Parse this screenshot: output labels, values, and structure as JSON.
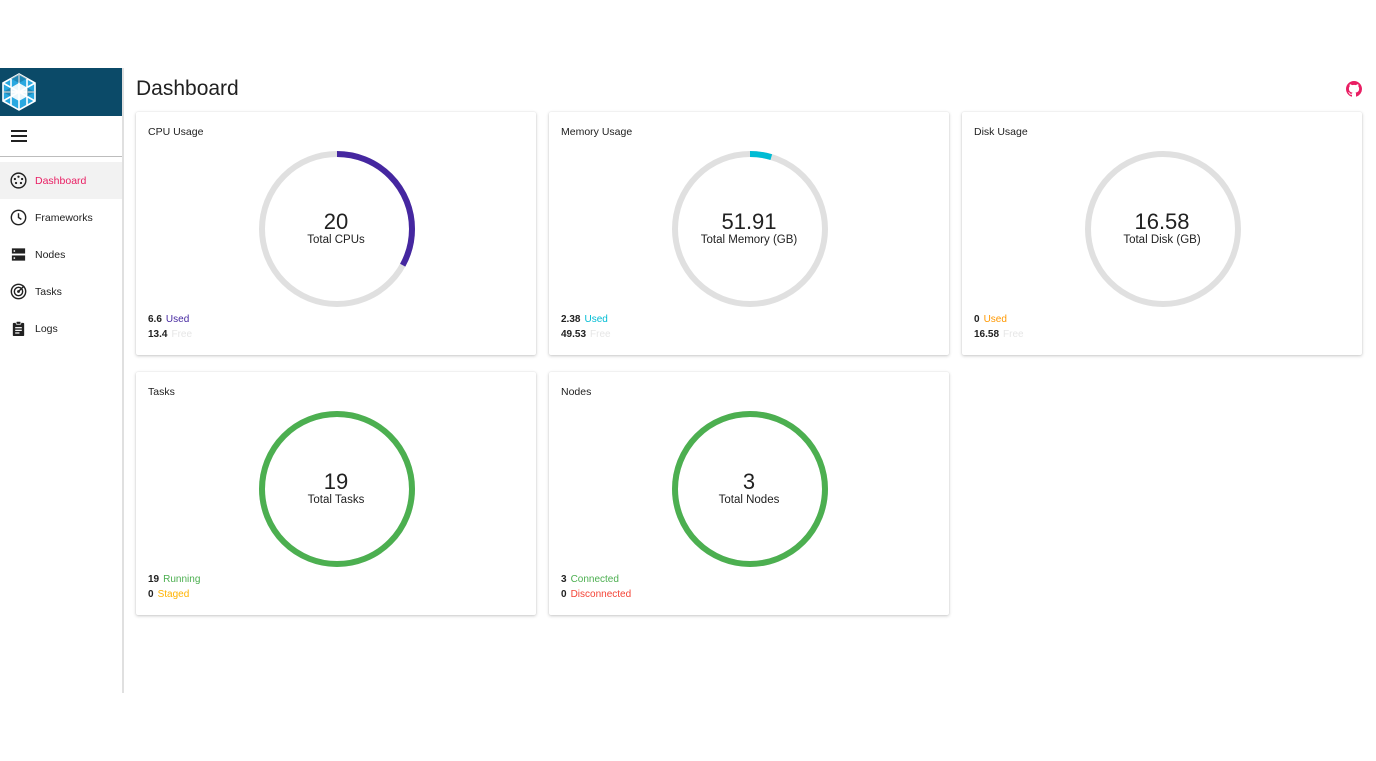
{
  "sidebar": {
    "items": [
      {
        "label": "Dashboard",
        "icon": "dashboard-icon",
        "active": true
      },
      {
        "label": "Frameworks",
        "icon": "clock-icon",
        "active": false
      },
      {
        "label": "Nodes",
        "icon": "server-icon",
        "active": false
      },
      {
        "label": "Tasks",
        "icon": "radar-icon",
        "active": false
      },
      {
        "label": "Logs",
        "icon": "clipboard-icon",
        "active": false
      }
    ]
  },
  "header": {
    "title": "Dashboard",
    "icon": "github-icon"
  },
  "colors": {
    "accent": "#e91e63",
    "cpu": "#4527a0",
    "memory": "#00bcd4",
    "disk": "#ff9800",
    "green": "#4caf50",
    "staged": "#ffb300",
    "disconnected": "#f44336",
    "free": "#e0e0e0",
    "track": "#e0e0e0"
  },
  "cards": {
    "cpu": {
      "title": "CPU Usage",
      "total": "20",
      "total_label": "Total CPUs",
      "used": "6.6",
      "used_label": "Used",
      "free": "13.4",
      "free_label": "Free",
      "fraction": 0.33
    },
    "memory": {
      "title": "Memory Usage",
      "total": "51.91",
      "total_label": "Total Memory (GB)",
      "used": "2.38",
      "used_label": "Used",
      "free": "49.53",
      "free_label": "Free",
      "fraction": 0.0458
    },
    "disk": {
      "title": "Disk Usage",
      "total": "16.58",
      "total_label": "Total Disk (GB)",
      "used": "0",
      "used_label": "Used",
      "free": "16.58",
      "free_label": "Free",
      "fraction": 0
    },
    "tasks": {
      "title": "Tasks",
      "total": "19",
      "total_label": "Total Tasks",
      "running": "19",
      "running_label": "Running",
      "staged": "0",
      "staged_label": "Staged",
      "fraction": 1
    },
    "nodes": {
      "title": "Nodes",
      "total": "3",
      "total_label": "Total Nodes",
      "connected": "3",
      "connected_label": "Connected",
      "disconnected": "0",
      "disconnected_label": "Disconnected",
      "fraction": 1
    }
  }
}
